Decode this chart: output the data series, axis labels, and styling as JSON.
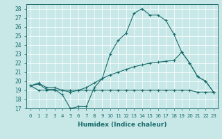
{
  "xlabel": "Humidex (Indice chaleur)",
  "bg_color": "#c8e8e8",
  "line_color": "#1a6b6b",
  "xlim": [
    -0.5,
    23.5
  ],
  "ylim": [
    17,
    28.5
  ],
  "yticks": [
    17,
    18,
    19,
    20,
    21,
    22,
    23,
    24,
    25,
    26,
    27,
    28
  ],
  "xticks": [
    0,
    1,
    2,
    3,
    4,
    5,
    6,
    7,
    8,
    9,
    10,
    11,
    12,
    13,
    14,
    15,
    16,
    17,
    18,
    19,
    20,
    21,
    22,
    23
  ],
  "line1_x": [
    0,
    1,
    2,
    3,
    4,
    5,
    6,
    7,
    8,
    9,
    10,
    11,
    12,
    13,
    14,
    15,
    16,
    17,
    18,
    19,
    20,
    21,
    22,
    23
  ],
  "line1_y": [
    19.5,
    19.7,
    19.1,
    19.1,
    18.5,
    17.0,
    17.2,
    17.2,
    19.3,
    20.3,
    23.0,
    24.5,
    25.3,
    27.5,
    28.0,
    27.3,
    27.3,
    26.7,
    25.2,
    23.2,
    22.0,
    20.5,
    20.0,
    18.8
  ],
  "line2_x": [
    0,
    1,
    2,
    3,
    4,
    5,
    6,
    7,
    8,
    9,
    10,
    11,
    12,
    13,
    14,
    15,
    16,
    17,
    18,
    19,
    20,
    21,
    22,
    23
  ],
  "line2_y": [
    19.5,
    19.8,
    19.3,
    19.3,
    19.0,
    18.8,
    19.0,
    19.3,
    19.8,
    20.3,
    20.7,
    21.0,
    21.3,
    21.6,
    21.8,
    22.0,
    22.1,
    22.2,
    22.3,
    23.2,
    22.0,
    20.5,
    20.0,
    18.8
  ],
  "line3_x": [
    0,
    1,
    2,
    3,
    4,
    5,
    6,
    7,
    8,
    9,
    10,
    11,
    12,
    13,
    14,
    15,
    16,
    17,
    18,
    19,
    20,
    21,
    22,
    23
  ],
  "line3_y": [
    19.5,
    19.0,
    19.0,
    19.0,
    19.0,
    19.0,
    19.0,
    19.0,
    19.0,
    19.0,
    19.0,
    19.0,
    19.0,
    19.0,
    19.0,
    19.0,
    19.0,
    19.0,
    19.0,
    19.0,
    19.0,
    18.8,
    18.8,
    18.8
  ]
}
